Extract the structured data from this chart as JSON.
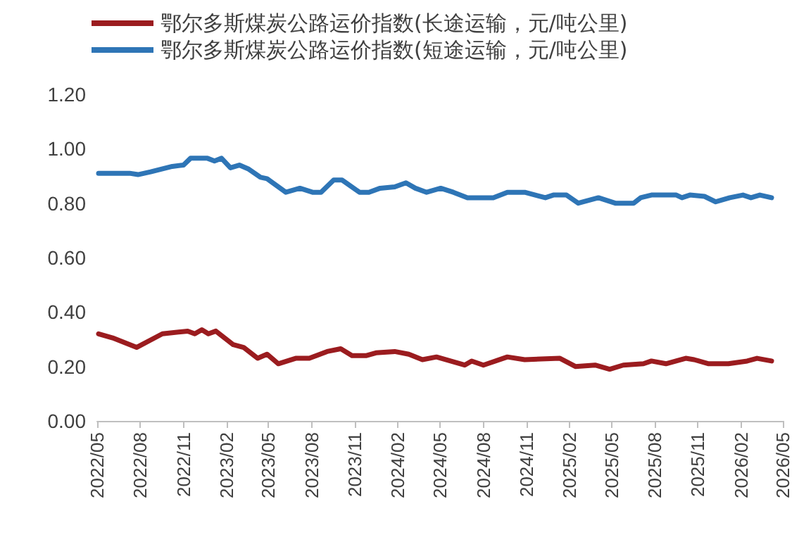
{
  "chart_data": {
    "type": "line",
    "xlim": [
      "2022-05",
      "2026-05"
    ],
    "xticks": [
      {
        "value": "2022-05",
        "label": "2022/05"
      },
      {
        "value": "2022-08",
        "label": "2022/08"
      },
      {
        "value": "2022-11",
        "label": "2022/11"
      },
      {
        "value": "2023-02",
        "label": "2023/02"
      },
      {
        "value": "2023-05",
        "label": "2023/05"
      },
      {
        "value": "2023-08",
        "label": "2023/08"
      },
      {
        "value": "2023-11",
        "label": "2023/11"
      },
      {
        "value": "2024-02",
        "label": "2024/02"
      },
      {
        "value": "2024-05",
        "label": "2024/05"
      },
      {
        "value": "2024-08",
        "label": "2024/08"
      },
      {
        "value": "2024-11",
        "label": "2024/11"
      },
      {
        "value": "2025-02",
        "label": "2025/02"
      },
      {
        "value": "2025-05",
        "label": "2025/05"
      },
      {
        "value": "2025-08",
        "label": "2025/08"
      },
      {
        "value": "2025-11",
        "label": "2025/11"
      },
      {
        "value": "2026-02",
        "label": "2026/02"
      },
      {
        "value": "2026-05",
        "label": "2026/05"
      }
    ],
    "ylim": [
      0,
      1.2
    ],
    "yticks": [
      {
        "value": 0,
        "label": "0.00"
      },
      {
        "value": 0.2,
        "label": "0.20"
      },
      {
        "value": 0.4,
        "label": "0.40"
      },
      {
        "value": 0.6,
        "label": "0.60"
      },
      {
        "value": 0.8,
        "label": "0.80"
      },
      {
        "value": 1.0,
        "label": "1.00"
      },
      {
        "value": 1.2,
        "label": "1.20"
      }
    ],
    "grid": false,
    "legend": "top",
    "marker": "none",
    "line_style": "solid",
    "series": [
      {
        "name": "鄂尔多斯煤炭公路运价指数(长途运输，元/吨公里)",
        "color": "#9b1c1f",
        "x": [
          "2022-05-04",
          "2022-06-03",
          "2022-07-24",
          "2022-09-17",
          "2022-11-10",
          "2022-11-25",
          "2022-12-10",
          "2022-12-24",
          "2023-01-09",
          "2023-02-15",
          "2023-03-09",
          "2023-04-08",
          "2023-04-28",
          "2023-05-22",
          "2023-06-28",
          "2023-07-27",
          "2023-09-03",
          "2023-10-02",
          "2023-10-26",
          "2023-11-26",
          "2023-12-16",
          "2024-01-25",
          "2024-02-24",
          "2024-03-24",
          "2024-04-23",
          "2024-05-23",
          "2024-06-22",
          "2024-07-07",
          "2024-08-01",
          "2024-09-21",
          "2024-10-28",
          "2025-01-11",
          "2025-02-13",
          "2025-03-27",
          "2025-04-27",
          "2025-05-26",
          "2025-07-08",
          "2025-07-25",
          "2025-08-25",
          "2025-10-06",
          "2025-10-24",
          "2025-11-24",
          "2026-01-05",
          "2026-02-14",
          "2026-03-07",
          "2026-04-07"
        ],
        "values": [
          0.32,
          0.305,
          0.27,
          0.32,
          0.33,
          0.32,
          0.335,
          0.32,
          0.33,
          0.28,
          0.27,
          0.23,
          0.245,
          0.21,
          0.23,
          0.23,
          0.255,
          0.265,
          0.24,
          0.24,
          0.25,
          0.255,
          0.245,
          0.225,
          0.235,
          0.22,
          0.205,
          0.22,
          0.205,
          0.235,
          0.225,
          0.23,
          0.2,
          0.205,
          0.19,
          0.205,
          0.21,
          0.22,
          0.21,
          0.23,
          0.225,
          0.21,
          0.21,
          0.22,
          0.23,
          0.22
        ]
      },
      {
        "name": "鄂尔多斯煤炭公路运价指数(短途运输，元/吨公里)",
        "color": "#2e75b6",
        "x": [
          "2022-05-04",
          "2022-07-09",
          "2022-07-27",
          "2022-08-23",
          "2022-10-08",
          "2022-11-01",
          "2022-11-16",
          "2022-12-22",
          "2023-01-06",
          "2023-01-21",
          "2023-02-09",
          "2023-02-28",
          "2023-03-20",
          "2023-04-14",
          "2023-04-28",
          "2023-06-07",
          "2023-07-07",
          "2023-08-03",
          "2023-08-21",
          "2023-09-17",
          "2023-10-05",
          "2023-11-11",
          "2023-12-01",
          "2023-12-25",
          "2024-01-25",
          "2024-02-18",
          "2024-03-09",
          "2024-04-02",
          "2024-05-02",
          "2024-05-29",
          "2024-06-28",
          "2024-08-22",
          "2024-09-21",
          "2024-10-28",
          "2024-12-11",
          "2024-12-28",
          "2025-01-25",
          "2025-02-19",
          "2025-04-03",
          "2025-05-09",
          "2025-06-17",
          "2025-07-02",
          "2025-07-25",
          "2025-09-16",
          "2025-09-28",
          "2025-10-15",
          "2025-11-15",
          "2025-12-09",
          "2026-01-08",
          "2026-02-05",
          "2026-02-22",
          "2026-03-13",
          "2026-04-07"
        ],
        "values": [
          0.91,
          0.91,
          0.905,
          0.915,
          0.935,
          0.94,
          0.965,
          0.965,
          0.955,
          0.965,
          0.93,
          0.94,
          0.925,
          0.895,
          0.89,
          0.84,
          0.855,
          0.84,
          0.84,
          0.885,
          0.885,
          0.84,
          0.84,
          0.855,
          0.86,
          0.875,
          0.855,
          0.84,
          0.855,
          0.84,
          0.82,
          0.82,
          0.84,
          0.84,
          0.82,
          0.83,
          0.83,
          0.8,
          0.82,
          0.8,
          0.8,
          0.82,
          0.83,
          0.83,
          0.82,
          0.83,
          0.825,
          0.805,
          0.82,
          0.83,
          0.82,
          0.83,
          0.82
        ]
      }
    ]
  }
}
